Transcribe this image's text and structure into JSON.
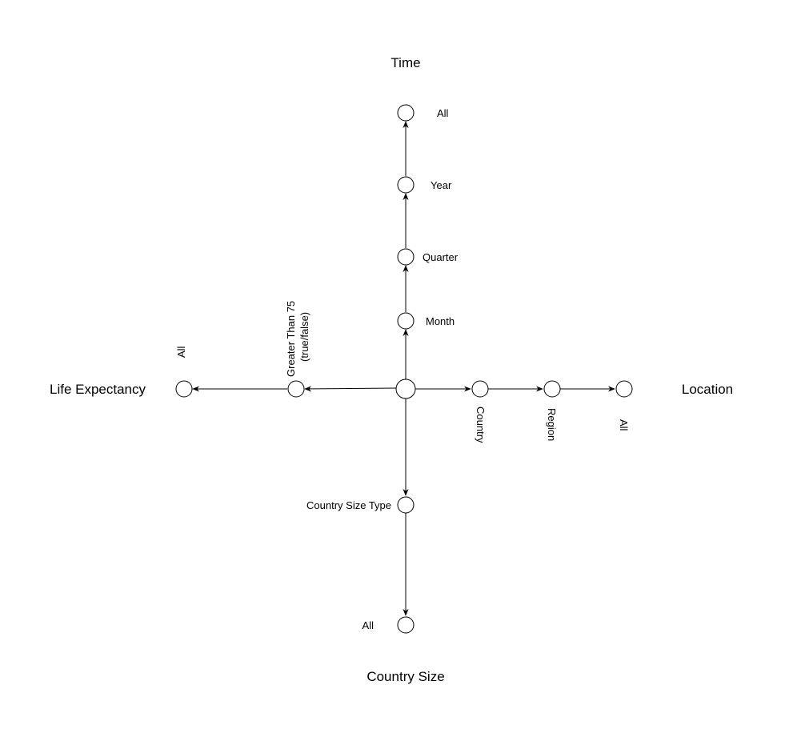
{
  "axes": {
    "time": {
      "title": "Time",
      "levels": [
        "Month",
        "Quarter",
        "Year",
        "All"
      ]
    },
    "location": {
      "title": "Location",
      "levels": [
        "Country",
        "Region",
        "All"
      ]
    },
    "life_expectancy": {
      "title": "Life Expectancy",
      "levels": [
        "Greater Than 75",
        "(true/false)",
        "All"
      ]
    },
    "country_size": {
      "title": "Country Size",
      "levels": [
        "Country Size Type",
        "All"
      ]
    }
  }
}
